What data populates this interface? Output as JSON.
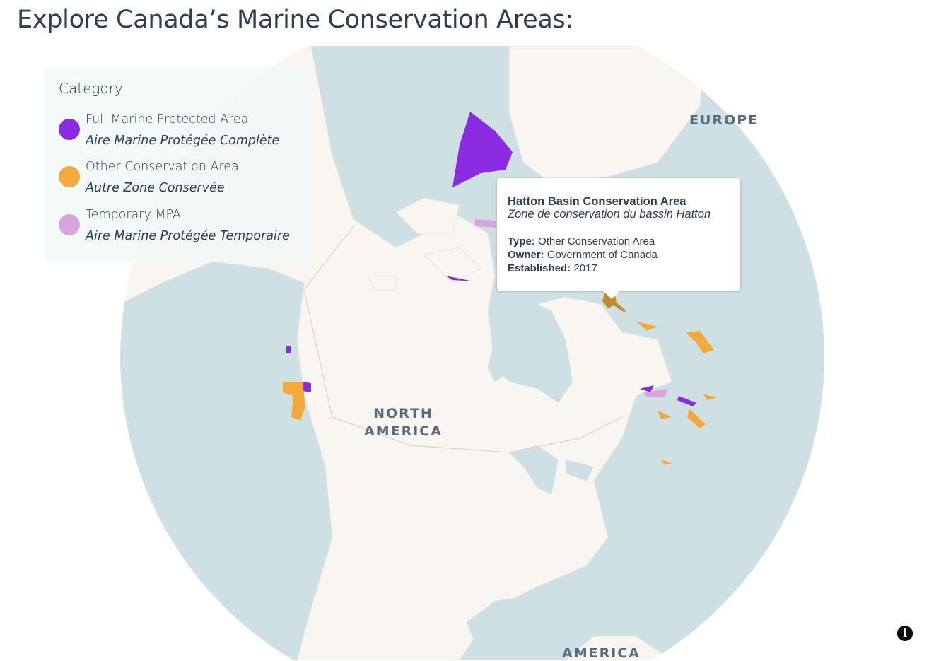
{
  "page": {
    "title": "Explore Canada’s Marine Conservation Areas:"
  },
  "legend": {
    "title": "Category",
    "items": [
      {
        "en": "Full Marine Protected Area",
        "fr": "Aire Marine Protégée Complète",
        "color": "#8a2be2"
      },
      {
        "en": "Other Conservation Area",
        "fr": "Autre Zone Conservée",
        "color": "#f4a93c"
      },
      {
        "en": "Temporary MPA",
        "fr": "Aire Marine Protégée Temporaire",
        "color": "#d8a4dd"
      }
    ]
  },
  "tooltip": {
    "name": "Hatton Basin Conservation Area",
    "name_fr": "Zone de conservation du bassin Hatton",
    "type_label": "Type:",
    "type": "Other Conservation Area",
    "owner_label": "Owner:",
    "owner": "Government of Canada",
    "established_label": "Established:",
    "established": "2017"
  },
  "map_labels": {
    "europe": "EUROPE",
    "north_america": "NORTH\nAMERICA",
    "south_america": "AMERICA"
  },
  "colors": {
    "ocean": "#cfe0e4",
    "land": "#f9f6f2",
    "highlight": "#c4882d"
  },
  "icons": {
    "info": "info-icon"
  }
}
